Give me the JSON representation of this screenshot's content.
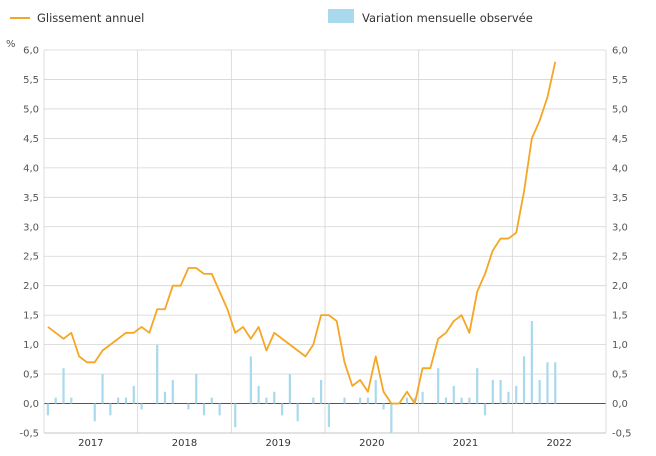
{
  "chart_data": {
    "type": "bar+line",
    "ylabel": "%",
    "ylim": [
      -0.5,
      6.0
    ],
    "y_ticks": [
      -0.5,
      0.0,
      0.5,
      1.0,
      1.5,
      2.0,
      2.5,
      3.0,
      3.5,
      4.0,
      4.5,
      5.0,
      5.5,
      6.0
    ],
    "y_tick_labels": [
      "-0,5",
      "0,0",
      "0,5",
      "1,0",
      "1,5",
      "2,0",
      "2,5",
      "3,0",
      "3,5",
      "4,0",
      "4,5",
      "5,0",
      "5,5",
      "6,0"
    ],
    "years": [
      "2017",
      "2018",
      "2019",
      "2020",
      "2021",
      "2022"
    ],
    "grid": true,
    "legend_position": "top",
    "series": [
      {
        "name": "Glissement annuel",
        "kind": "line",
        "color": "#f5a623",
        "values": [
          1.3,
          1.2,
          1.1,
          1.2,
          0.8,
          0.7,
          0.7,
          0.9,
          1.0,
          1.1,
          1.2,
          1.2,
          1.3,
          1.2,
          1.6,
          1.6,
          2.0,
          2.0,
          2.3,
          2.3,
          2.2,
          2.2,
          1.9,
          1.6,
          1.2,
          1.3,
          1.1,
          1.3,
          0.9,
          1.2,
          1.1,
          1.0,
          0.9,
          0.8,
          1.0,
          1.5,
          1.5,
          1.4,
          0.7,
          0.3,
          0.4,
          0.2,
          0.8,
          0.2,
          0.0,
          0.0,
          0.2,
          0.0,
          0.6,
          0.6,
          1.1,
          1.2,
          1.4,
          1.5,
          1.2,
          1.9,
          2.2,
          2.6,
          2.8,
          2.8,
          2.9,
          3.6,
          4.5,
          4.8,
          5.2,
          5.8
        ]
      },
      {
        "name": "Variation mensuelle observée",
        "kind": "bar",
        "color": "#a9d9ec",
        "values": [
          -0.2,
          0.1,
          0.6,
          0.1,
          0.0,
          0.0,
          -0.3,
          0.5,
          -0.2,
          0.1,
          0.1,
          0.3,
          -0.1,
          0.0,
          1.0,
          0.2,
          0.4,
          0.0,
          -0.1,
          0.5,
          -0.2,
          0.1,
          -0.2,
          0.0,
          -0.4,
          0.0,
          0.8,
          0.3,
          0.1,
          0.2,
          -0.2,
          0.5,
          -0.3,
          0.0,
          0.1,
          0.4,
          -0.4,
          0.0,
          0.1,
          0.0,
          0.1,
          0.1,
          0.4,
          -0.1,
          -0.5,
          0.0,
          0.1,
          0.1,
          0.2,
          0.0,
          0.6,
          0.1,
          0.3,
          0.1,
          0.1,
          0.6,
          -0.2,
          0.4,
          0.4,
          0.2,
          0.3,
          0.8,
          1.4,
          0.4,
          0.7,
          0.7
        ]
      }
    ]
  },
  "legend": {
    "line_label": "Glissement annuel",
    "bar_label": "Variation mensuelle observée",
    "line_color": "#f5a623",
    "bar_color": "#a9d9ec"
  },
  "axis": {
    "unit_label": "%"
  }
}
